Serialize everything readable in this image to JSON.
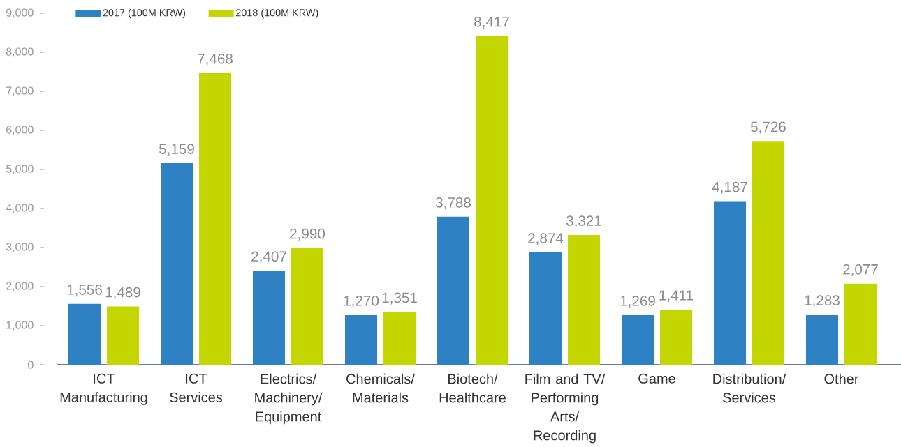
{
  "chart_data": {
    "type": "bar",
    "categories": [
      "ICT\nManufacturing",
      "ICT\nServices",
      "Electrics/\nMachinery/\nEquipment",
      "Chemicals/\nMaterials",
      "Biotech/\nHealthcare",
      "Film and TV/\nPerforming\nArts/\nRecording",
      "Game",
      "Distribution/\nServices",
      "Other"
    ],
    "series": [
      {
        "name": "2017 (100M KRW)",
        "color": "#2e82c3",
        "values": [
          1556,
          5159,
          2407,
          1270,
          3788,
          2874,
          1269,
          4187,
          1283
        ],
        "value_labels": [
          "1,556",
          "5,159",
          "2,407",
          "1,270",
          "3,788",
          "2,874",
          "1,269",
          "4,187",
          "1,283"
        ]
      },
      {
        "name": "2018 (100M KRW)",
        "color": "#c3d600",
        "values": [
          1489,
          7468,
          2990,
          1351,
          8417,
          3321,
          1411,
          5726,
          2077
        ],
        "value_labels": [
          "1,489",
          "7,468",
          "2,990",
          "1,351",
          "8,417",
          "3,321",
          "1,411",
          "5,726",
          "2,077"
        ]
      }
    ],
    "ylim": [
      0,
      9000
    ],
    "yticks": [
      0,
      {
        "value": 1000,
        "label": "1,000"
      },
      {
        "value": 2000,
        "label": "2,000"
      },
      {
        "value": 3000,
        "label": "3,000"
      },
      {
        "value": 4000,
        "label": "4,000"
      },
      {
        "value": 5000,
        "label": "5,000"
      },
      {
        "value": 6000,
        "label": "6,000"
      },
      {
        "value": 7000,
        "label": "7,000"
      },
      {
        "value": 8000,
        "label": "8,000"
      },
      {
        "value": 9000,
        "label": "9,000"
      }
    ],
    "legend": "top left"
  }
}
